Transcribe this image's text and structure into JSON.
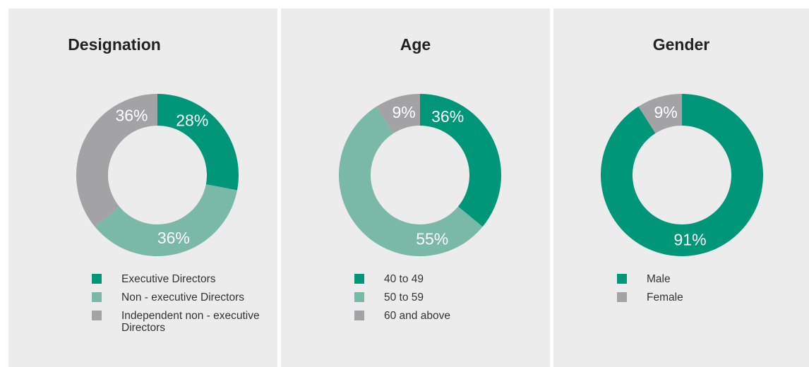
{
  "colors": {
    "dark_green": "#009779",
    "light_green": "#7ab8a8",
    "grey": "#a3a3a5",
    "panel_bg": "#ececec"
  },
  "chart_data": [
    {
      "type": "pie",
      "title": "Designation",
      "donut": true,
      "slices": [
        {
          "label": "Executive Directors",
          "value": 28,
          "display": "28%",
          "color": "#009779"
        },
        {
          "label": "Non - executive Directors",
          "value": 36,
          "display": "36%",
          "color": "#7ab8a8"
        },
        {
          "label": "Independent non - executive Directors",
          "value": 36,
          "display": "36%",
          "color": "#a3a3a5"
        }
      ],
      "legend_placement": "bottom"
    },
    {
      "type": "pie",
      "title": "Age",
      "donut": true,
      "slices": [
        {
          "label": "40 to 49",
          "value": 36,
          "display": "36%",
          "color": "#009779"
        },
        {
          "label": "50 to 59",
          "value": 55,
          "display": "55%",
          "color": "#7ab8a8"
        },
        {
          "label": "60 and above",
          "value": 9,
          "display": "9%",
          "color": "#a3a3a5"
        }
      ],
      "legend_placement": "bottom"
    },
    {
      "type": "pie",
      "title": "Gender",
      "donut": true,
      "slices": [
        {
          "label": "Male",
          "value": 91,
          "display": "91%",
          "color": "#009779"
        },
        {
          "label": "Female",
          "value": 9,
          "display": "9%",
          "color": "#a3a3a5"
        }
      ],
      "legend_placement": "bottom"
    }
  ]
}
